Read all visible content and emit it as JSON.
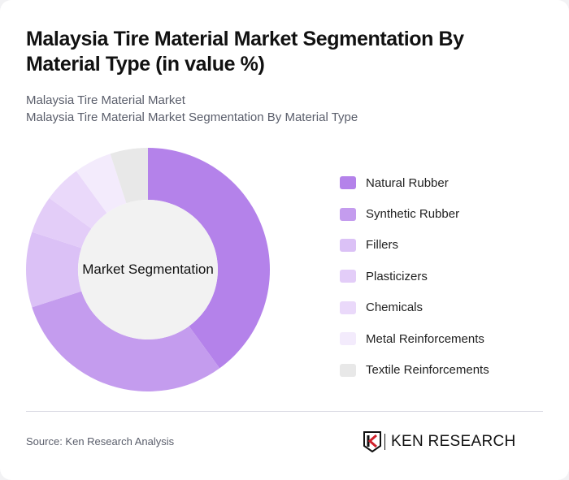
{
  "header": {
    "title": "Malaysia Tire Material Market Segmentation By Material Type (in value %)",
    "subtitle_line1": "Malaysia Tire Material Market",
    "subtitle_line2": "Malaysia Tire Material Market Segmentation By Material Type"
  },
  "chart": {
    "center_label": "Market Segmentation"
  },
  "legend": [
    {
      "label": "Natural Rubber",
      "color": "#b482ea"
    },
    {
      "label": "Synthetic Rubber",
      "color": "#c49cee"
    },
    {
      "label": "Fillers",
      "color": "#dbc1f6"
    },
    {
      "label": "Plasticizers",
      "color": "#e3cdf8"
    },
    {
      "label": "Chemicals",
      "color": "#ead9fa"
    },
    {
      "label": "Metal Reinforcements",
      "color": "#f3ebfc"
    },
    {
      "label": "Textile Reinforcements",
      "color": "#e8e8e8"
    }
  ],
  "footer": {
    "source": "Source: Ken Research Analysis",
    "logo_text": "KEN RESEARCH"
  },
  "chart_data": {
    "type": "pie",
    "subtype": "donut",
    "title": "Malaysia Tire Material Market Segmentation By Material Type (in value %)",
    "center_label": "Market Segmentation",
    "categories": [
      "Natural Rubber",
      "Synthetic Rubber",
      "Fillers",
      "Plasticizers",
      "Chemicals",
      "Metal Reinforcements",
      "Textile Reinforcements"
    ],
    "values": [
      40,
      30,
      10,
      5,
      5,
      5,
      5
    ],
    "colors": [
      "#b482ea",
      "#c49cee",
      "#dbc1f6",
      "#e3cdf8",
      "#ead9fa",
      "#f3ebfc",
      "#e8e8e8"
    ],
    "legend_position": "right",
    "unit": "%"
  }
}
